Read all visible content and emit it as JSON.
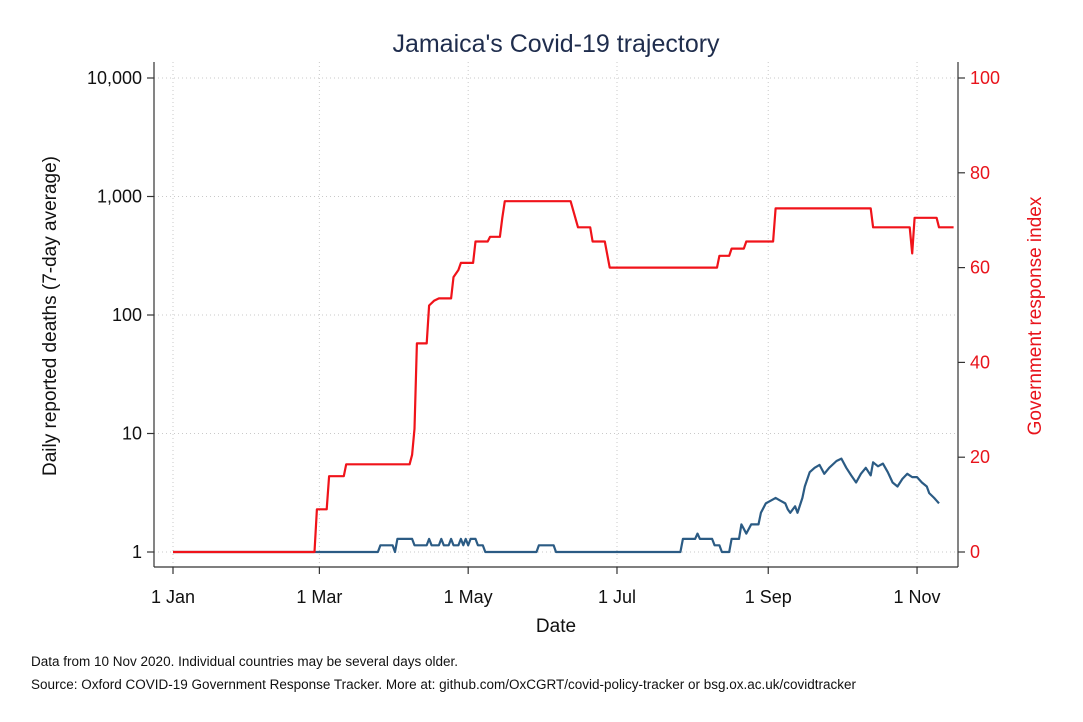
{
  "chart_data": {
    "type": "line",
    "title": "Jamaica's Covid-19 trajectory",
    "xlabel": "Date",
    "ylabel": "Daily reported deaths (7-day average)",
    "y2label": "Government response index",
    "x_ticks": [
      "1 Jan",
      "1 Mar",
      "1 May",
      "1 Jul",
      "1 Sep",
      "1 Nov"
    ],
    "x_range": [
      "2020-01-01",
      "2020-11-10"
    ],
    "y_scale": "log",
    "y_ticks": [
      "1",
      "10",
      "100",
      "1,000",
      "10,000"
    ],
    "ylim": [
      1,
      10000
    ],
    "y2_ticks": [
      "0",
      "20",
      "40",
      "60",
      "80",
      "100"
    ],
    "y2lim": [
      0,
      100
    ],
    "grid": true,
    "series": [
      {
        "axis": "left",
        "color": "#2b5b84",
        "points": [
          [
            "2020-01-01",
            1
          ],
          [
            "2020-03-25",
            1
          ],
          [
            "2020-03-26",
            1.14
          ],
          [
            "2020-03-31",
            1.14
          ],
          [
            "2020-04-01",
            1
          ],
          [
            "2020-04-02",
            1.29
          ],
          [
            "2020-04-08",
            1.29
          ],
          [
            "2020-04-09",
            1.14
          ],
          [
            "2020-04-14",
            1.14
          ],
          [
            "2020-04-15",
            1.29
          ],
          [
            "2020-04-16",
            1.14
          ],
          [
            "2020-04-19",
            1.14
          ],
          [
            "2020-04-20",
            1.29
          ],
          [
            "2020-04-21",
            1.14
          ],
          [
            "2020-04-23",
            1.14
          ],
          [
            "2020-04-24",
            1.29
          ],
          [
            "2020-04-25",
            1.14
          ],
          [
            "2020-04-27",
            1.14
          ],
          [
            "2020-04-28",
            1.29
          ],
          [
            "2020-04-29",
            1.14
          ],
          [
            "2020-04-30",
            1.29
          ],
          [
            "2020-05-01",
            1.14
          ],
          [
            "2020-05-02",
            1.29
          ],
          [
            "2020-05-04",
            1.29
          ],
          [
            "2020-05-05",
            1.14
          ],
          [
            "2020-05-07",
            1.14
          ],
          [
            "2020-05-08",
            1
          ],
          [
            "2020-05-29",
            1
          ],
          [
            "2020-05-30",
            1.14
          ],
          [
            "2020-06-05",
            1.14
          ],
          [
            "2020-06-06",
            1
          ],
          [
            "2020-07-27",
            1
          ],
          [
            "2020-07-28",
            1.29
          ],
          [
            "2020-08-02",
            1.29
          ],
          [
            "2020-08-03",
            1.43
          ],
          [
            "2020-08-04",
            1.29
          ],
          [
            "2020-08-09",
            1.29
          ],
          [
            "2020-08-10",
            1.14
          ],
          [
            "2020-08-12",
            1.14
          ],
          [
            "2020-08-13",
            1
          ],
          [
            "2020-08-16",
            1
          ],
          [
            "2020-08-17",
            1.29
          ],
          [
            "2020-08-20",
            1.29
          ],
          [
            "2020-08-21",
            1.71
          ],
          [
            "2020-08-22",
            1.57
          ],
          [
            "2020-08-23",
            1.43
          ],
          [
            "2020-08-25",
            1.71
          ],
          [
            "2020-08-28",
            1.71
          ],
          [
            "2020-08-29",
            2.14
          ],
          [
            "2020-08-31",
            2.57
          ],
          [
            "2020-09-02",
            2.71
          ],
          [
            "2020-09-04",
            2.86
          ],
          [
            "2020-09-06",
            2.71
          ],
          [
            "2020-09-08",
            2.57
          ],
          [
            "2020-09-09",
            2.29
          ],
          [
            "2020-09-10",
            2.14
          ],
          [
            "2020-09-12",
            2.43
          ],
          [
            "2020-09-13",
            2.14
          ],
          [
            "2020-09-15",
            2.86
          ],
          [
            "2020-09-16",
            3.57
          ],
          [
            "2020-09-18",
            4.71
          ],
          [
            "2020-09-20",
            5.14
          ],
          [
            "2020-09-22",
            5.43
          ],
          [
            "2020-09-24",
            4.57
          ],
          [
            "2020-09-26",
            5.14
          ],
          [
            "2020-09-29",
            5.86
          ],
          [
            "2020-10-01",
            6.14
          ],
          [
            "2020-10-03",
            5.14
          ],
          [
            "2020-10-05",
            4.43
          ],
          [
            "2020-10-07",
            3.86
          ],
          [
            "2020-10-09",
            4.57
          ],
          [
            "2020-10-11",
            5.14
          ],
          [
            "2020-10-13",
            4.43
          ],
          [
            "2020-10-14",
            5.71
          ],
          [
            "2020-10-16",
            5.29
          ],
          [
            "2020-10-18",
            5.57
          ],
          [
            "2020-10-20",
            4.71
          ],
          [
            "2020-10-22",
            3.86
          ],
          [
            "2020-10-24",
            3.57
          ],
          [
            "2020-10-26",
            4.14
          ],
          [
            "2020-10-28",
            4.57
          ],
          [
            "2020-10-30",
            4.29
          ],
          [
            "2020-11-01",
            4.29
          ],
          [
            "2020-11-03",
            3.86
          ],
          [
            "2020-11-05",
            3.57
          ],
          [
            "2020-11-06",
            3.14
          ],
          [
            "2020-11-08",
            2.86
          ],
          [
            "2020-11-09",
            2.71
          ],
          [
            "2020-11-10",
            2.57
          ]
        ]
      },
      {
        "axis": "right",
        "color": "#f0131a",
        "points": [
          [
            "2020-01-01",
            0
          ],
          [
            "2020-02-28",
            0
          ],
          [
            "2020-02-29",
            9
          ],
          [
            "2020-03-04",
            9
          ],
          [
            "2020-03-05",
            16
          ],
          [
            "2020-03-11",
            16
          ],
          [
            "2020-03-12",
            18.5
          ],
          [
            "2020-04-07",
            18.5
          ],
          [
            "2020-04-08",
            20.5
          ],
          [
            "2020-04-09",
            26
          ],
          [
            "2020-04-10",
            44
          ],
          [
            "2020-04-14",
            44
          ],
          [
            "2020-04-15",
            52
          ],
          [
            "2020-04-17",
            53
          ],
          [
            "2020-04-19",
            53.5
          ],
          [
            "2020-04-24",
            53.5
          ],
          [
            "2020-04-25",
            58
          ],
          [
            "2020-04-27",
            59.5
          ],
          [
            "2020-04-28",
            61
          ],
          [
            "2020-05-03",
            61
          ],
          [
            "2020-05-04",
            65.5
          ],
          [
            "2020-05-09",
            65.5
          ],
          [
            "2020-05-10",
            66.5
          ],
          [
            "2020-05-14",
            66.5
          ],
          [
            "2020-05-15",
            70.5
          ],
          [
            "2020-05-16",
            74
          ],
          [
            "2020-06-12",
            74
          ],
          [
            "2020-06-15",
            68.5
          ],
          [
            "2020-06-20",
            68.5
          ],
          [
            "2020-06-21",
            65.5
          ],
          [
            "2020-06-26",
            65.5
          ],
          [
            "2020-06-28",
            60
          ],
          [
            "2020-08-11",
            60
          ],
          [
            "2020-08-12",
            62.5
          ],
          [
            "2020-08-16",
            62.5
          ],
          [
            "2020-08-17",
            64
          ],
          [
            "2020-08-22",
            64
          ],
          [
            "2020-08-23",
            65.5
          ],
          [
            "2020-09-03",
            65.5
          ],
          [
            "2020-09-04",
            72.5
          ],
          [
            "2020-10-13",
            72.5
          ],
          [
            "2020-10-14",
            68.5
          ],
          [
            "2020-10-29",
            68.5
          ],
          [
            "2020-10-30",
            63
          ],
          [
            "2020-10-31",
            70.5
          ],
          [
            "2020-11-09",
            70.5
          ],
          [
            "2020-11-10",
            68.5
          ],
          [
            "2020-11-16",
            68.5
          ]
        ]
      }
    ]
  },
  "footnotes": [
    "Data from 10 Nov 2020. Individual countries may be several days older.",
    "Source: Oxford COVID-19 Government Response Tracker. More at: github.com/OxCGRT/covid-policy-tracker or bsg.ox.ac.uk/covidtracker"
  ]
}
